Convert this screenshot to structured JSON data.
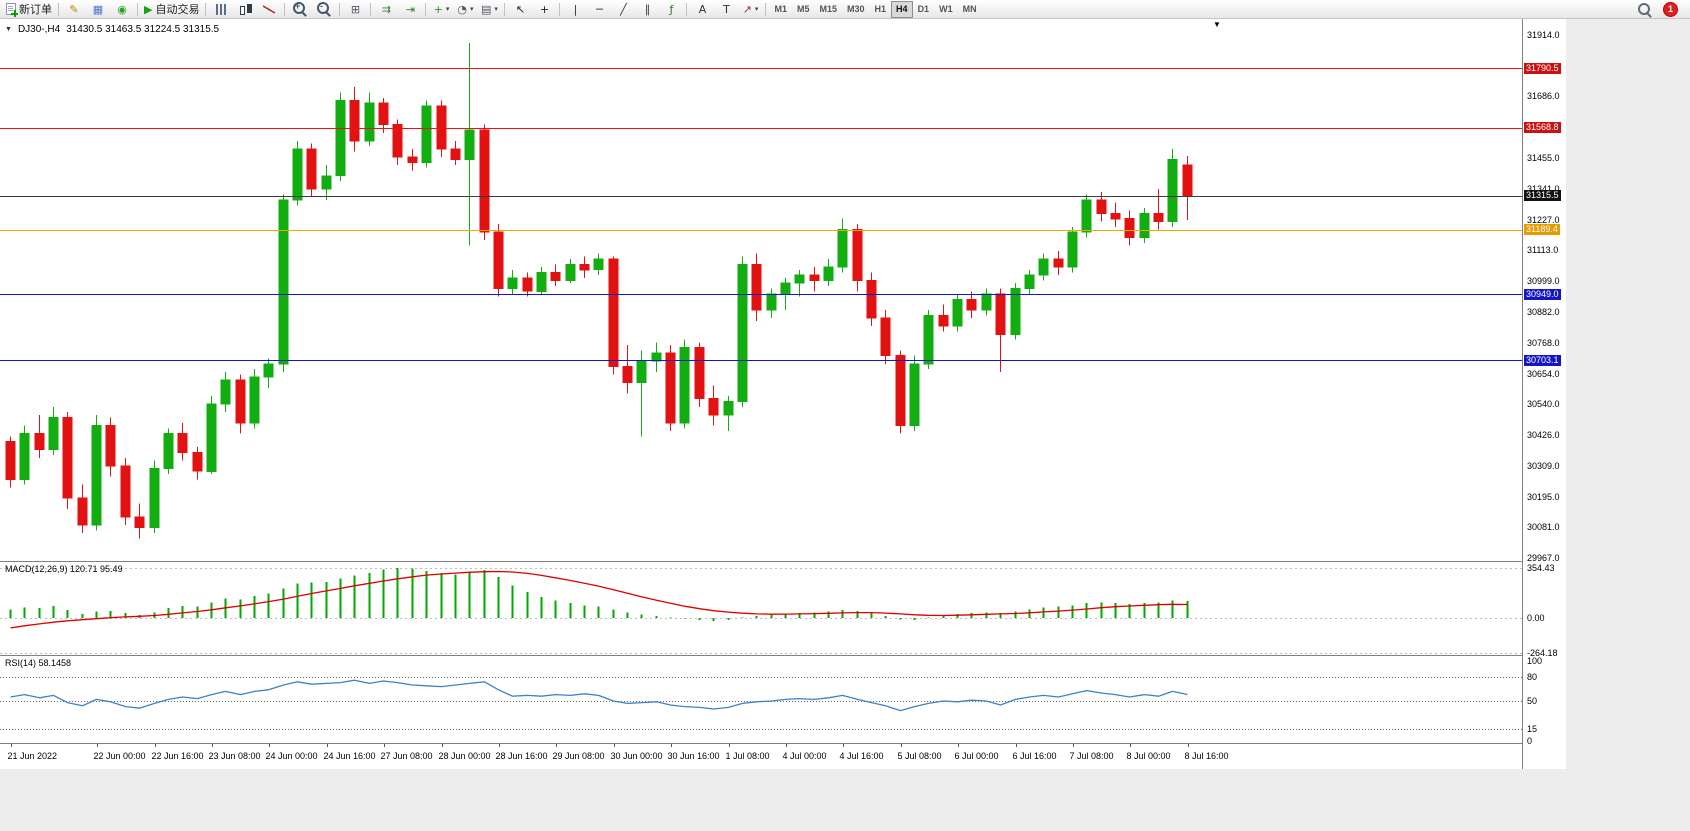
{
  "toolbar": {
    "caret": "▾",
    "notification_count": "1",
    "timeframes": [
      "M1",
      "M5",
      "M15",
      "M30",
      "H1",
      "H4",
      "D1",
      "W1",
      "MN"
    ],
    "active_timeframe": "H4",
    "groups": [
      {
        "items": [
          {
            "name": "new-order-button",
            "icon": "neworder",
            "label": "新订单"
          }
        ]
      },
      {
        "items": [
          {
            "name": "metaeditor-button",
            "icon": "glyph",
            "glyph": "✎",
            "color": "#b08900"
          },
          {
            "name": "market-button",
            "icon": "glyph",
            "glyph": "▦",
            "color": "#4a78c8"
          },
          {
            "name": "signals-button",
            "icon": "glyph",
            "glyph": "◉",
            "color": "#2ba02b"
          }
        ]
      },
      {
        "items": [
          {
            "name": "autotrading-button",
            "icon": "glyph",
            "glyph": "▶",
            "color": "#18a018",
            "label": "自动交易"
          }
        ]
      },
      {
        "items": [
          {
            "name": "bar-chart-button",
            "icon": "bars"
          },
          {
            "name": "candlestick-chart-button",
            "icon": "candles"
          },
          {
            "name": "line-chart-button",
            "icon": "linechart"
          }
        ]
      },
      {
        "items": [
          {
            "name": "zoom-in-button",
            "icon": "zoomin"
          },
          {
            "name": "zoom-out-button",
            "icon": "zoomout"
          }
        ]
      },
      {
        "items": [
          {
            "name": "tile-windows-button",
            "icon": "glyph",
            "glyph": "⊞",
            "color": "#555566"
          }
        ]
      },
      {
        "items": [
          {
            "name": "auto-scroll-button",
            "icon": "glyph",
            "glyph": "⇉",
            "color": "#3a7a3a"
          },
          {
            "name": "chart-shift-button",
            "icon": "glyph",
            "glyph": "⇥",
            "color": "#3a7a3a"
          }
        ]
      },
      {
        "items": [
          {
            "name": "indicators-button",
            "icon": "glyph",
            "glyph": "+",
            "color": "#18a018",
            "caret": true
          },
          {
            "name": "periods-button",
            "icon": "glyph",
            "glyph": "◔",
            "color": "#555566",
            "caret": true
          },
          {
            "name": "templates-button",
            "icon": "glyph",
            "glyph": "▤",
            "color": "#555566",
            "caret": true
          }
        ]
      },
      {
        "items": [
          {
            "name": "cursor-button",
            "icon": "glyph",
            "glyph": "↖",
            "color": "#222222"
          },
          {
            "name": "crosshair-button",
            "icon": "glyph",
            "glyph": "+",
            "color": "#222222"
          }
        ]
      },
      {
        "items": [
          {
            "name": "vertical-line-button",
            "icon": "glyph",
            "glyph": "|",
            "color": "#333333"
          },
          {
            "name": "horizontal-line-button",
            "icon": "glyph",
            "glyph": "─",
            "color": "#333333"
          },
          {
            "name": "trendline-button",
            "icon": "glyph",
            "glyph": "╱",
            "color": "#333333"
          },
          {
            "name": "channel-button",
            "icon": "glyph",
            "glyph": "∥",
            "color": "#333333"
          },
          {
            "name": "fibonacci-button",
            "icon": "glyph",
            "glyph": "ƒ",
            "color": "#2a7a2a"
          }
        ]
      },
      {
        "items": [
          {
            "name": "text-button",
            "icon": "glyph",
            "glyph": "A",
            "color": "#333333"
          },
          {
            "name": "text-label-button",
            "icon": "glyph",
            "glyph": "T",
            "color": "#333333"
          },
          {
            "name": "arrows-button",
            "icon": "glyph",
            "glyph": "↗",
            "color": "#a03333",
            "caret": true
          }
        ]
      }
    ]
  },
  "chart": {
    "title": "DJ30-,H4",
    "ohlc_text": "31430.5 31463.5 31224.5 31315.5",
    "macd_label": "MACD(12,26,9) 120.71 95.49",
    "rsi_label": "RSI(14) 58.1458",
    "shift_marker": "▼",
    "colors": {
      "up": "#11ad11",
      "down": "#e31212",
      "macd_hist": "#00a800",
      "macd_signal": "#e00000",
      "rsi_line": "#3f7fca",
      "level_red": "#ee1111",
      "level_blue": "#1414cc",
      "level_orange": "#f0a800",
      "level_black": "#3a3a3a"
    }
  },
  "levels": [
    {
      "value": 31790.5,
      "color": "#ee1111"
    },
    {
      "value": 31568.8,
      "color": "#ee1111"
    },
    {
      "value": 31315.5,
      "color": "#3a3a3a"
    },
    {
      "value": 31189.4,
      "color": "#f0a800"
    },
    {
      "value": 30949.0,
      "color": "#1414cc"
    },
    {
      "value": 30703.1,
      "color": "#1414cc"
    }
  ],
  "price_axis": {
    "ticks": [
      {
        "label": "31914.0",
        "value": 31914.0
      },
      {
        "label": "31790.5",
        "value": 31790.5,
        "bg": "#cc1111"
      },
      {
        "label": "31686.0",
        "value": 31686.0
      },
      {
        "label": "31568.8",
        "value": 31568.8,
        "bg": "#cc1111"
      },
      {
        "label": "31455.0",
        "value": 31455.0
      },
      {
        "label": "31341.0",
        "value": 31341.0
      },
      {
        "label": "31315.5",
        "value": 31315.5,
        "bg": "#111111"
      },
      {
        "label": "31227.0",
        "value": 31227.0
      },
      {
        "label": "31189.4",
        "value": 31189.4,
        "bg": "#e89c00"
      },
      {
        "label": "31113.0",
        "value": 31113.0
      },
      {
        "label": "30999.0",
        "value": 30999.0
      },
      {
        "label": "30949.0",
        "value": 30949.0,
        "bg": "#1414c8"
      },
      {
        "label": "30882.0",
        "value": 30882.0
      },
      {
        "label": "30768.0",
        "value": 30768.0
      },
      {
        "label": "30703.1",
        "value": 30703.1,
        "bg": "#1414c8"
      },
      {
        "label": "30654.0",
        "value": 30654.0
      },
      {
        "label": "30540.0",
        "value": 30540.0
      },
      {
        "label": "30426.0",
        "value": 30426.0
      },
      {
        "label": "30309.0",
        "value": 30309.0
      },
      {
        "label": "30195.0",
        "value": 30195.0
      },
      {
        "label": "30081.0",
        "value": 30081.0
      },
      {
        "label": "29967.0",
        "value": 29967.0
      }
    ]
  },
  "macd_axis": [
    {
      "label": "354.43",
      "value": 354.43,
      "dashed": true
    },
    {
      "label": "0.00",
      "value": 0,
      "dashed": true
    },
    {
      "label": "-264.18",
      "value": -264.18,
      "dashed": true
    }
  ],
  "rsi_axis": [
    {
      "label": "100",
      "value": 100
    },
    {
      "label": "80",
      "value": 80,
      "dashed": true
    },
    {
      "label": "50",
      "value": 50,
      "dashed": true
    },
    {
      "label": "15",
      "value": 15,
      "dashed": true
    },
    {
      "label": "0",
      "value": 0
    }
  ],
  "time_axis": [
    {
      "i": 0,
      "label": "21 Jun 2022"
    },
    {
      "i": 6,
      "label": "22 Jun 00:00"
    },
    {
      "i": 10,
      "label": "22 Jun 16:00"
    },
    {
      "i": 14,
      "label": "23 Jun 08:00"
    },
    {
      "i": 18,
      "label": "24 Jun 00:00"
    },
    {
      "i": 22,
      "label": "24 Jun 16:00"
    },
    {
      "i": 26,
      "label": "27 Jun 08:00"
    },
    {
      "i": 30,
      "label": "28 Jun 00:00"
    },
    {
      "i": 34,
      "label": "28 Jun 16:00"
    },
    {
      "i": 38,
      "label": "29 Jun 08:00"
    },
    {
      "i": 42,
      "label": "30 Jun 00:00"
    },
    {
      "i": 46,
      "label": "30 Jun 16:00"
    },
    {
      "i": 50,
      "label": "1 Jul 08:00"
    },
    {
      "i": 54,
      "label": "4 Jul 00:00"
    },
    {
      "i": 58,
      "label": "4 Jul 16:00"
    },
    {
      "i": 62,
      "label": "5 Jul 08:00"
    },
    {
      "i": 66,
      "label": "6 Jul 00:00"
    },
    {
      "i": 70,
      "label": "6 Jul 16:00"
    },
    {
      "i": 74,
      "label": "7 Jul 08:00"
    },
    {
      "i": 78,
      "label": "8 Jul 00:00"
    },
    {
      "i": 82,
      "label": "8 Jul 16:00"
    }
  ],
  "chart_data": [
    {
      "type": "candlestick",
      "name": "DJ30- H4",
      "ylim": [
        29967.0,
        31914.0
      ],
      "candles": [
        [
          30400,
          30420,
          30230,
          30260
        ],
        [
          30260,
          30460,
          30240,
          30430
        ],
        [
          30430,
          30500,
          30340,
          30370
        ],
        [
          30370,
          30530,
          30350,
          30490
        ],
        [
          30490,
          30510,
          30150,
          30190
        ],
        [
          30190,
          30240,
          30060,
          30090
        ],
        [
          30090,
          30500,
          30070,
          30460
        ],
        [
          30460,
          30490,
          30270,
          30310
        ],
        [
          30310,
          30340,
          30090,
          30120
        ],
        [
          30120,
          30170,
          30040,
          30080
        ],
        [
          30080,
          30330,
          30060,
          30300
        ],
        [
          30300,
          30450,
          30280,
          30430
        ],
        [
          30430,
          30470,
          30330,
          30360
        ],
        [
          30360,
          30380,
          30260,
          30290
        ],
        [
          30290,
          30570,
          30280,
          30540
        ],
        [
          30540,
          30660,
          30510,
          30630
        ],
        [
          30630,
          30650,
          30430,
          30470
        ],
        [
          30470,
          30670,
          30450,
          30640
        ],
        [
          30640,
          30710,
          30600,
          30690
        ],
        [
          30690,
          31320,
          30660,
          31300
        ],
        [
          31300,
          31520,
          31280,
          31490
        ],
        [
          31490,
          31510,
          31310,
          31340
        ],
        [
          31340,
          31430,
          31300,
          31390
        ],
        [
          31390,
          31700,
          31370,
          31670
        ],
        [
          31670,
          31720,
          31480,
          31520
        ],
        [
          31520,
          31700,
          31500,
          31660
        ],
        [
          31660,
          31680,
          31550,
          31580
        ],
        [
          31580,
          31600,
          31430,
          31460
        ],
        [
          31460,
          31490,
          31410,
          31440
        ],
        [
          31440,
          31670,
          31420,
          31650
        ],
        [
          31650,
          31670,
          31460,
          31490
        ],
        [
          31490,
          31520,
          31430,
          31450
        ],
        [
          31450,
          31885,
          31130,
          31560
        ],
        [
          31560,
          31580,
          31150,
          31180
        ],
        [
          31180,
          31210,
          30940,
          30970
        ],
        [
          30970,
          31040,
          30950,
          31010
        ],
        [
          31010,
          31030,
          30940,
          30960
        ],
        [
          30960,
          31050,
          30950,
          31030
        ],
        [
          31030,
          31060,
          30980,
          31000
        ],
        [
          31000,
          31080,
          30990,
          31060
        ],
        [
          31060,
          31090,
          31010,
          31040
        ],
        [
          31040,
          31100,
          31020,
          31080
        ],
        [
          31080,
          31090,
          30650,
          30680
        ],
        [
          30680,
          30760,
          30580,
          30620
        ],
        [
          30620,
          30740,
          30420,
          30700
        ],
        [
          30700,
          30770,
          30660,
          30730
        ],
        [
          30730,
          30760,
          30440,
          30470
        ],
        [
          30470,
          30780,
          30450,
          30750
        ],
        [
          30750,
          30770,
          30530,
          30560
        ],
        [
          30560,
          30610,
          30460,
          30500
        ],
        [
          30500,
          30570,
          30440,
          30550
        ],
        [
          30550,
          31090,
          30530,
          31060
        ],
        [
          31060,
          31100,
          30850,
          30890
        ],
        [
          30890,
          30970,
          30860,
          30950
        ],
        [
          30950,
          31010,
          30890,
          30990
        ],
        [
          30990,
          31040,
          30940,
          31020
        ],
        [
          31020,
          31050,
          30960,
          31000
        ],
        [
          31000,
          31080,
          30980,
          31050
        ],
        [
          31050,
          31230,
          31030,
          31190
        ],
        [
          31190,
          31210,
          30960,
          31000
        ],
        [
          31000,
          31030,
          30830,
          30860
        ],
        [
          30860,
          30890,
          30690,
          30720
        ],
        [
          30720,
          30740,
          30430,
          30460
        ],
        [
          30460,
          30720,
          30440,
          30690
        ],
        [
          30690,
          30890,
          30670,
          30870
        ],
        [
          30870,
          30910,
          30810,
          30830
        ],
        [
          30830,
          30950,
          30810,
          30930
        ],
        [
          30930,
          30960,
          30860,
          30890
        ],
        [
          30890,
          30970,
          30870,
          30950
        ],
        [
          30950,
          30970,
          30660,
          30800
        ],
        [
          30800,
          30990,
          30780,
          30970
        ],
        [
          30970,
          31040,
          30950,
          31020
        ],
        [
          31020,
          31100,
          31000,
          31080
        ],
        [
          31080,
          31110,
          31020,
          31050
        ],
        [
          31050,
          31200,
          31030,
          31180
        ],
        [
          31180,
          31320,
          31160,
          31300
        ],
        [
          31300,
          31330,
          31220,
          31250
        ],
        [
          31250,
          31290,
          31200,
          31230
        ],
        [
          31230,
          31260,
          31130,
          31160
        ],
        [
          31160,
          31270,
          31140,
          31250
        ],
        [
          31250,
          31340,
          31190,
          31220
        ],
        [
          31220,
          31490,
          31200,
          31450
        ],
        [
          31430.5,
          31463.5,
          31224.5,
          31315.5
        ]
      ]
    },
    {
      "type": "macd",
      "name": "MACD(12,26,9)",
      "current_macd": 120.71,
      "current_signal": 95.49,
      "ylim": [
        -264.18,
        354.43
      ],
      "histogram": [
        60,
        75,
        70,
        85,
        55,
        30,
        45,
        50,
        35,
        20,
        40,
        70,
        85,
        80,
        110,
        140,
        130,
        155,
        175,
        210,
        245,
        250,
        255,
        280,
        300,
        320,
        345,
        354,
        350,
        335,
        320,
        310,
        330,
        340,
        290,
        230,
        185,
        150,
        125,
        105,
        90,
        80,
        60,
        40,
        25,
        15,
        5,
        -5,
        -15,
        -20,
        -15,
        5,
        15,
        20,
        30,
        35,
        40,
        45,
        55,
        50,
        35,
        15,
        -10,
        -15,
        5,
        20,
        30,
        35,
        40,
        35,
        45,
        60,
        75,
        80,
        90,
        105,
        110,
        105,
        100,
        105,
        110,
        125,
        120.71
      ],
      "signal": [
        -70,
        -55,
        -42,
        -30,
        -20,
        -12,
        -5,
        2,
        8,
        12,
        18,
        26,
        36,
        46,
        58,
        72,
        86,
        100,
        116,
        134,
        154,
        174,
        192,
        210,
        228,
        246,
        262,
        278,
        292,
        304,
        312,
        318,
        324,
        328,
        330,
        326,
        316,
        302,
        285,
        266,
        246,
        226,
        200,
        175,
        150,
        126,
        104,
        84,
        66,
        52,
        42,
        34,
        29,
        27,
        28,
        29,
        31,
        33,
        36,
        38,
        38,
        35,
        29,
        23,
        19,
        18,
        20,
        23,
        26,
        29,
        32,
        37,
        43,
        49,
        56,
        64,
        73,
        80,
        85,
        90,
        94,
        97,
        95.49
      ]
    },
    {
      "type": "line",
      "name": "RSI(14)",
      "current": 58.1458,
      "ylim": [
        0,
        100
      ],
      "levels": [
        80,
        50,
        15
      ],
      "values": [
        55,
        58,
        54,
        57,
        48,
        44,
        52,
        49,
        43,
        41,
        47,
        52,
        55,
        53,
        58,
        62,
        58,
        62,
        64,
        70,
        74,
        71,
        72,
        73,
        76,
        72,
        75,
        73,
        70,
        69,
        68,
        70,
        72,
        74,
        64,
        56,
        57,
        56,
        58,
        57,
        59,
        57,
        50,
        47,
        48,
        49,
        45,
        43,
        42,
        40,
        42,
        47,
        49,
        50,
        52,
        53,
        52,
        54,
        57,
        52,
        48,
        44,
        38,
        43,
        47,
        50,
        49,
        51,
        50,
        45,
        52,
        55,
        57,
        55,
        59,
        63,
        60,
        58,
        55,
        58,
        56,
        62,
        58.1458
      ]
    }
  ]
}
